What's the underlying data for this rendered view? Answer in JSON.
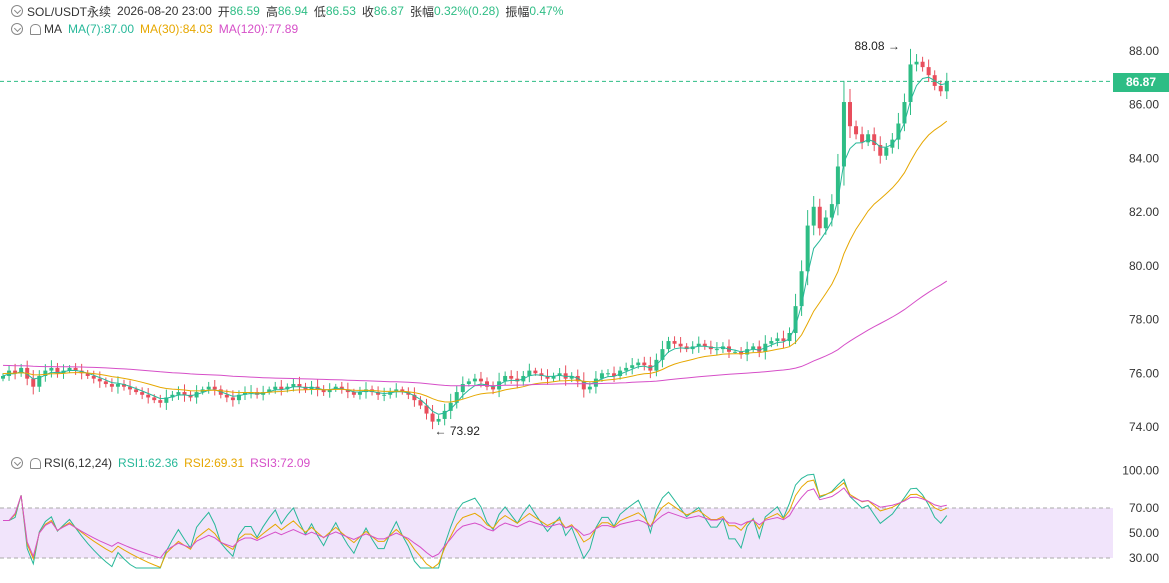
{
  "header": {
    "symbol": "SOL/USDT永续",
    "datetime": "2026-08-20 23:00",
    "open_label": "开",
    "open": "86.59",
    "high_label": "高",
    "high": "86.94",
    "low_label": "低",
    "low": "86.53",
    "close_label": "收",
    "close": "86.87",
    "change_label": "张幅",
    "change": "0.32%(0.28)",
    "amplitude_label": "振幅",
    "amplitude": "0.47%"
  },
  "ma_legend": {
    "title": "MA",
    "ma7": "MA(7):87.00",
    "ma30": "MA(30):84.03",
    "ma120": "MA(120):77.89"
  },
  "rsi_legend": {
    "title": "RSI(6,12,24)",
    "rsi1": "RSI1:62.36",
    "rsi2": "RSI2:69.31",
    "rsi3": "RSI3:72.09"
  },
  "current_price": "86.87",
  "annotations": {
    "high": "88.08",
    "low": "73.92"
  },
  "colors": {
    "up": "#2ebd85",
    "down": "#e84e5c",
    "ma7": "#27b899",
    "ma30": "#e6a700",
    "ma120": "#d64fc8",
    "rsi_band": "#f1e4fb"
  },
  "chart_data": [
    {
      "type": "candlestick",
      "ylim": [
        73,
        89
      ],
      "yticks": [
        "74.00",
        "76.00",
        "78.00",
        "80.00",
        "82.00",
        "84.00",
        "86.00",
        "88.00"
      ],
      "close": [
        75.9,
        76.1,
        76.0,
        76.2,
        75.8,
        75.5,
        75.9,
        76.1,
        76.2,
        76.0,
        76.1,
        76.2,
        76.1,
        76.0,
        75.9,
        75.8,
        75.7,
        75.6,
        75.5,
        75.6,
        75.5,
        75.4,
        75.3,
        75.2,
        75.1,
        75.0,
        74.9,
        75.1,
        75.2,
        75.3,
        75.2,
        75.1,
        75.3,
        75.4,
        75.5,
        75.4,
        75.2,
        75.1,
        75.0,
        75.2,
        75.3,
        75.3,
        75.2,
        75.3,
        75.4,
        75.5,
        75.4,
        75.5,
        75.6,
        75.5,
        75.4,
        75.5,
        75.4,
        75.3,
        75.4,
        75.5,
        75.4,
        75.3,
        75.2,
        75.3,
        75.4,
        75.3,
        75.2,
        75.2,
        75.3,
        75.4,
        75.3,
        75.2,
        75.0,
        74.8,
        74.5,
        74.2,
        74.3,
        74.6,
        74.9,
        75.3,
        75.6,
        75.7,
        75.8,
        75.7,
        75.5,
        75.4,
        75.7,
        75.9,
        75.8,
        75.7,
        75.9,
        76.1,
        76.0,
        75.9,
        75.8,
        75.9,
        76.0,
        75.8,
        75.9,
        75.7,
        75.4,
        75.5,
        75.8,
        76.0,
        76.0,
        75.9,
        76.1,
        76.2,
        76.3,
        76.4,
        76.3,
        76.1,
        76.5,
        76.9,
        77.2,
        77.1,
        77.0,
        76.9,
        77.0,
        77.1,
        77.0,
        76.9,
        76.9,
        77.0,
        76.8,
        76.8,
        76.7,
        76.9,
        77.0,
        76.8,
        77.1,
        77.2,
        77.3,
        77.2,
        77.5,
        78.5,
        79.8,
        81.5,
        82.2,
        81.4,
        81.8,
        82.3,
        83.7,
        86.1,
        85.2,
        84.9,
        84.6,
        84.9,
        84.5,
        84.1,
        84.4,
        84.7,
        85.3,
        86.1,
        87.5,
        87.6,
        87.4,
        87.1,
        86.7,
        86.5,
        86.87
      ],
      "open_first": 75.8,
      "annotations": {
        "max": 88.08,
        "min": 73.92
      },
      "ma_lines": [
        "MA(7)",
        "MA(30)",
        "MA(120)"
      ],
      "ma_start": [
        75.9,
        76.0,
        76.3
      ]
    },
    {
      "type": "line",
      "title": "RSI(6,12,24)",
      "ylim": [
        25,
        105
      ],
      "yticks": [
        "30.00",
        "50.00",
        "70.00",
        "100.00"
      ],
      "band": [
        30,
        70
      ],
      "series_names": [
        "RSI1",
        "RSI2",
        "RSI3"
      ]
    }
  ]
}
